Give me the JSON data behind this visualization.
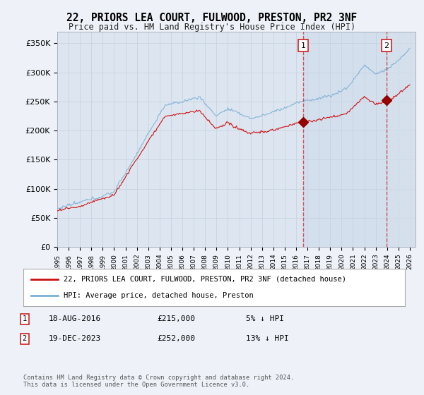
{
  "title": "22, PRIORS LEA COURT, FULWOOD, PRESTON, PR2 3NF",
  "subtitle": "Price paid vs. HM Land Registry's House Price Index (HPI)",
  "background_color": "#eef2f8",
  "plot_bg_color": "#dde6f0",
  "grid_color": "#c8d4e0",
  "shaded_region_color": "#ccd8ec",
  "ylim": [
    0,
    370000
  ],
  "yticks": [
    0,
    50000,
    100000,
    150000,
    200000,
    250000,
    300000,
    350000
  ],
  "ytick_labels": [
    "£0",
    "£50K",
    "£100K",
    "£150K",
    "£200K",
    "£250K",
    "£300K",
    "£350K"
  ],
  "xstart_year": 1995,
  "xend_year": 2026,
  "t1_year": 2016.625,
  "t2_year": 2023.96,
  "transaction1_price": 215000,
  "transaction2_price": 252000,
  "hpi_line_color": "#7bafd4",
  "price_line_color": "#cc1111",
  "legend_label1": "22, PRIORS LEA COURT, FULWOOD, PRESTON, PR2 3NF (detached house)",
  "legend_label2": "HPI: Average price, detached house, Preston",
  "footnote1": "Contains HM Land Registry data © Crown copyright and database right 2024.",
  "footnote2": "This data is licensed under the Open Government Licence v3.0.",
  "table_rows": [
    {
      "num": "1",
      "date": "18-AUG-2016",
      "price": "£215,000",
      "note": "5% ↓ HPI"
    },
    {
      "num": "2",
      "date": "19-DEC-2023",
      "price": "£252,000",
      "note": "13% ↓ HPI"
    }
  ]
}
